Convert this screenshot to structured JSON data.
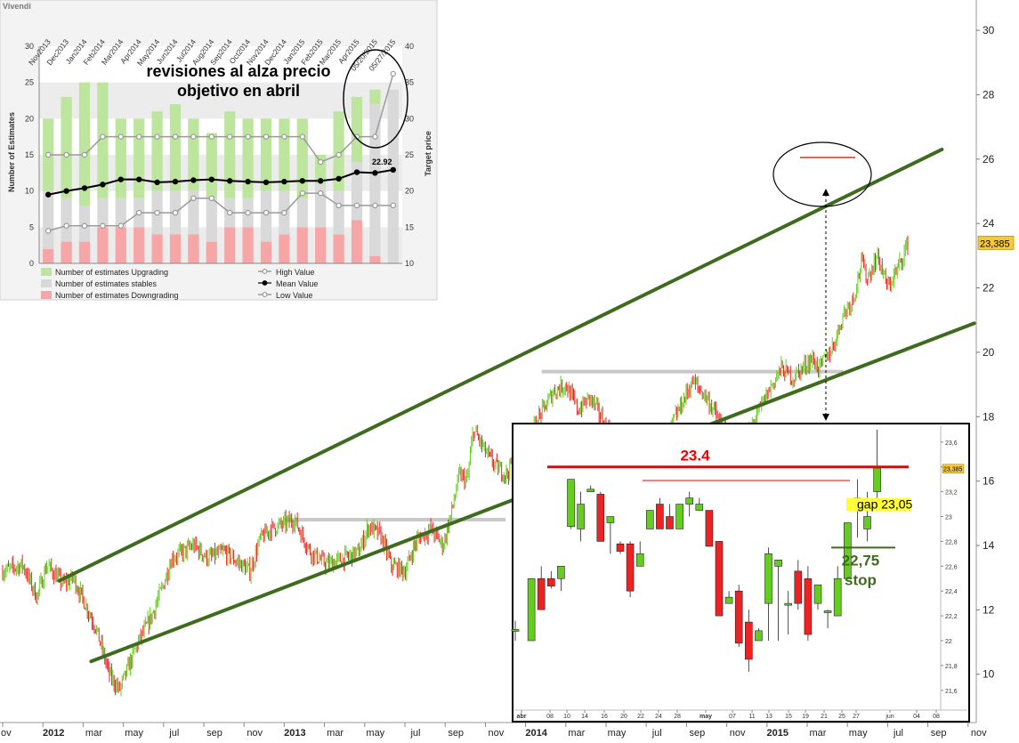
{
  "colors": {
    "up_candle": "#66cc22",
    "down_candle": "#ee2222",
    "channel": "#3e6b1d",
    "resistance": "#c8c8c8",
    "marker_red": "#ee0000",
    "stop_green": "#3e6b1d",
    "upgrading": "#bde59e",
    "stables": "#d9d9d9",
    "downgrading": "#f6a6a6",
    "price_tag": "#f6c93b",
    "gap_highlight": "#ffff33"
  },
  "chart_data": [
    {
      "type": "candlestick",
      "id": "main",
      "y_axis": {
        "position": "right",
        "ticks": [
          10,
          12,
          14,
          16,
          18,
          20,
          22,
          24,
          26,
          28,
          30
        ],
        "range": [
          8.5,
          30.5
        ]
      },
      "x_axis": {
        "labels": [
          {
            "t": "ov",
            "i": 0
          },
          {
            "t": "2012",
            "i": 2
          },
          {
            "t": "mar",
            "i": 4
          },
          {
            "t": "may",
            "i": 6
          },
          {
            "t": "jul",
            "i": 8
          },
          {
            "t": "sep",
            "i": 10
          },
          {
            "t": "nov",
            "i": 12
          },
          {
            "t": "2013",
            "i": 14
          },
          {
            "t": "mar",
            "i": 16
          },
          {
            "t": "may",
            "i": 18
          },
          {
            "t": "jul",
            "i": 20
          },
          {
            "t": "sep",
            "i": 22
          },
          {
            "t": "nov",
            "i": 24
          },
          {
            "t": "2014",
            "i": 26
          },
          {
            "t": "mar",
            "i": 28
          },
          {
            "t": "may",
            "i": 30
          },
          {
            "t": "jul",
            "i": 32
          },
          {
            "t": "sep",
            "i": 34
          },
          {
            "t": "nov",
            "i": 36
          },
          {
            "t": "2015",
            "i": 38
          },
          {
            "t": "mar",
            "i": 40
          },
          {
            "t": "may",
            "i": 42
          },
          {
            "t": "jul",
            "i": 44
          },
          {
            "t": "sep",
            "i": 46
          },
          {
            "t": "nov",
            "i": 48
          }
        ],
        "bold": [
          "2012",
          "2013",
          "2014",
          "2015"
        ]
      },
      "price_path": [
        [
          0,
          13.2
        ],
        [
          1,
          13.4
        ],
        [
          1.7,
          12.4
        ],
        [
          2.2,
          13.4
        ],
        [
          3.0,
          12.8
        ],
        [
          3.5,
          13.0
        ],
        [
          4.6,
          11.5
        ],
        [
          5.3,
          10.0
        ],
        [
          5.8,
          9.5
        ],
        [
          6.6,
          10.8
        ],
        [
          7.4,
          11.8
        ],
        [
          8.0,
          12.8
        ],
        [
          8.4,
          13.6
        ],
        [
          9.5,
          14.0
        ],
        [
          10.2,
          13.6
        ],
        [
          11.0,
          13.8
        ],
        [
          12.3,
          13.2
        ],
        [
          12.8,
          14.2
        ],
        [
          13.3,
          14.5
        ],
        [
          14.5,
          14.8
        ],
        [
          15.3,
          13.8
        ],
        [
          16.1,
          13.4
        ],
        [
          17.0,
          13.6
        ],
        [
          17.7,
          13.8
        ],
        [
          18.2,
          14.6
        ],
        [
          18.8,
          14.3
        ],
        [
          19.3,
          13.4
        ],
        [
          20.0,
          13.2
        ],
        [
          20.6,
          14.2
        ],
        [
          21.3,
          14.5
        ],
        [
          21.9,
          14.0
        ],
        [
          22.3,
          15.0
        ],
        [
          22.7,
          16.2
        ],
        [
          23.1,
          16.0
        ],
        [
          23.4,
          17.6
        ],
        [
          24.1,
          16.8
        ],
        [
          24.6,
          16.4
        ],
        [
          25.1,
          16.2
        ],
        [
          25.5,
          17.0
        ],
        [
          26.2,
          17.2
        ],
        [
          26.5,
          17.8
        ],
        [
          27.4,
          18.8
        ],
        [
          28.0,
          19.0
        ],
        [
          28.6,
          18.2
        ],
        [
          29.2,
          18.6
        ],
        [
          30.1,
          17.6
        ],
        [
          30.7,
          17.2
        ],
        [
          31.4,
          17.4
        ],
        [
          32.2,
          17.2
        ],
        [
          32.7,
          16.6
        ],
        [
          33.3,
          17.8
        ],
        [
          34.3,
          19.1
        ],
        [
          35.0,
          18.6
        ],
        [
          35.6,
          17.9
        ],
        [
          36.2,
          17.2
        ],
        [
          36.6,
          16.8
        ],
        [
          37.3,
          17.8
        ],
        [
          38.0,
          18.7
        ],
        [
          38.7,
          19.5
        ],
        [
          39.3,
          19.2
        ],
        [
          40.2,
          19.8
        ],
        [
          40.6,
          19.5
        ],
        [
          41.3,
          20.2
        ],
        [
          41.8,
          21.2
        ],
        [
          42.3,
          21.7
        ],
        [
          42.7,
          22.8
        ],
        [
          43.0,
          22.3
        ],
        [
          43.5,
          23.0
        ],
        [
          44.0,
          22.0
        ],
        [
          44.5,
          22.6
        ],
        [
          45.0,
          23.39
        ]
      ],
      "channel": [
        {
          "name": "upper",
          "from": [
            2.8,
            12.9
          ],
          "to": [
            46.7,
            26.3
          ]
        },
        {
          "name": "lower",
          "from": [
            4.4,
            10.4
          ],
          "to": [
            48.3,
            20.9
          ]
        }
      ],
      "resistance": [
        {
          "from": [
            14.0,
            14.8
          ],
          "to": [
            25.0,
            14.8
          ]
        },
        {
          "from": [
            26.8,
            19.4
          ],
          "to": [
            41.8,
            19.4
          ]
        }
      ],
      "last_price_label": "23,385",
      "last_price": 23.385
    },
    {
      "type": "bar+line",
      "id": "estimates",
      "title": "Vivendi",
      "ylabel": "Number of Estimates",
      "ylabel_right": "Target price",
      "y_ticks": [
        0,
        5,
        10,
        15,
        20,
        25,
        30
      ],
      "y_ticks_right": [
        10,
        15,
        20,
        25,
        30,
        35,
        40
      ],
      "categories": [
        "Nov2013",
        "Dec2013",
        "Jan2014",
        "Feb2014",
        "Mar2014",
        "Apr2014",
        "May2014",
        "Jun2014",
        "Jul2014",
        "Aug2014",
        "Sep2014",
        "Oct2014",
        "Nov2014",
        "Dec2014",
        "Jan2015",
        "Feb2015",
        "Mar2015",
        "Apr2015",
        "05/20/2015",
        "05/27/2015"
      ],
      "series": [
        {
          "name": "Number of estimates Downgrading",
          "values": [
            2,
            3,
            3,
            5,
            5,
            5,
            4,
            4,
            4,
            3,
            5,
            5,
            3,
            4,
            5,
            5,
            4,
            6,
            1,
            0
          ]
        },
        {
          "name": "Number of estimates stables",
          "values": [
            8,
            6,
            5,
            4,
            4,
            4,
            6,
            6,
            6,
            6,
            4,
            4,
            7,
            6,
            4,
            6,
            6,
            8,
            21,
            24
          ]
        },
        {
          "name": "Number of estimates Upgrading",
          "values": [
            10,
            14,
            17,
            16,
            11,
            11,
            11,
            12,
            10,
            9,
            12,
            11,
            10,
            10,
            11,
            4,
            11,
            9,
            2,
            0
          ]
        }
      ],
      "lines": [
        {
          "name": "High Value",
          "values": [
            25,
            25,
            25,
            27.5,
            27.5,
            27.5,
            27.5,
            27.5,
            27.5,
            27.5,
            27.5,
            27.5,
            27.5,
            27.5,
            27.5,
            24,
            25,
            27.5,
            27.5,
            36.2
          ]
        },
        {
          "name": "Mean Value",
          "values": [
            19.5,
            20,
            20.4,
            20.9,
            21.6,
            21.6,
            21.2,
            21.3,
            21.5,
            21.6,
            21.4,
            21.3,
            21.2,
            21.3,
            21.4,
            21.4,
            21.7,
            22.6,
            22.5,
            22.92
          ]
        },
        {
          "name": "Low Value",
          "values": [
            14.5,
            15.2,
            15.2,
            15.2,
            15.2,
            17,
            17,
            17,
            19,
            19,
            17,
            17,
            17,
            17,
            19.7,
            19.7,
            18,
            18,
            18,
            18
          ]
        }
      ],
      "mean_last_label": "22.92",
      "annotation": "revisiones al alza precio objetivo en abril"
    },
    {
      "type": "candlestick",
      "id": "inset",
      "y_ticks": [
        "23,6",
        "23,4",
        "23,2",
        "23",
        "22,8",
        "22,6",
        "22,4",
        "22,2",
        "22",
        "21,8",
        "21,6"
      ],
      "y_values": [
        23.6,
        23.4,
        23.2,
        23.0,
        22.8,
        22.6,
        22.4,
        22.2,
        22.0,
        21.8,
        21.6
      ],
      "x_labels": [
        "abr",
        "08",
        "10",
        "14",
        "16",
        "20",
        "22",
        "24",
        "28",
        "may",
        "07",
        "11",
        "13",
        "15",
        "19",
        "21",
        "25",
        "27",
        "jun",
        "04",
        "08"
      ],
      "bold_labels": [
        "abr",
        "may"
      ],
      "last_price_label": "23,385",
      "last_price": 23.385,
      "candles": [
        [
          22.08,
          22.16,
          22.0,
          22.09
        ],
        [
          22.0,
          22.5,
          22.0,
          22.5
        ],
        [
          22.5,
          22.6,
          22.25,
          22.25
        ],
        [
          22.5,
          22.56,
          22.42,
          22.44
        ],
        [
          22.5,
          22.6,
          22.4,
          22.6
        ],
        [
          22.92,
          23.3,
          22.9,
          23.3
        ],
        [
          22.9,
          23.2,
          22.8,
          23.1
        ],
        [
          23.2,
          23.25,
          23.2,
          23.22
        ],
        [
          23.18,
          23.2,
          22.8,
          22.8
        ],
        [
          22.95,
          23.0,
          22.7,
          23.0
        ],
        [
          22.78,
          22.8,
          22.7,
          22.72
        ],
        [
          22.78,
          22.8,
          22.35,
          22.4
        ],
        [
          22.6,
          22.8,
          22.6,
          22.7
        ],
        [
          22.9,
          23.05,
          22.9,
          23.05
        ],
        [
          23.1,
          23.15,
          22.9,
          22.9
        ],
        [
          23.0,
          23.1,
          22.9,
          22.9
        ],
        [
          22.9,
          23.1,
          22.9,
          23.1
        ],
        [
          23.1,
          23.2,
          23.0,
          23.15
        ],
        [
          23.05,
          23.15,
          23.05,
          23.1
        ],
        [
          23.05,
          23.05,
          22.76,
          22.76
        ],
        [
          22.8,
          22.8,
          22.2,
          22.2
        ],
        [
          22.3,
          22.4,
          22.3,
          22.35
        ],
        [
          22.4,
          22.45,
          21.95,
          21.98
        ],
        [
          22.15,
          22.25,
          21.75,
          21.85
        ],
        [
          22.0,
          22.1,
          22.0,
          22.08
        ],
        [
          22.3,
          22.75,
          22.0,
          22.7
        ],
        [
          22.6,
          22.65,
          22.0,
          22.65
        ],
        [
          22.3,
          22.4,
          22.05,
          22.3
        ],
        [
          22.56,
          22.65,
          22.25,
          22.3
        ],
        [
          22.5,
          22.6,
          22.0,
          22.05
        ],
        [
          22.3,
          22.45,
          22.25,
          22.45
        ],
        [
          22.23,
          22.25,
          22.1,
          22.24
        ],
        [
          22.2,
          22.6,
          22.2,
          22.5
        ],
        [
          22.5,
          22.95,
          22.5,
          22.95
        ],
        [
          23.12,
          23.3,
          22.83,
          23.15
        ],
        [
          22.9,
          23.2,
          22.8,
          23.0
        ],
        [
          23.2,
          23.7,
          23.1,
          23.39
        ]
      ],
      "resistance_label": "23.4",
      "resistance_value": 23.4,
      "minor_resistance_value": 23.29,
      "gap_label": "gap 23,05",
      "gap_value": 23.05,
      "stop_value_label": "22,75",
      "stop_text": "stop",
      "stop_value": 22.75
    }
  ]
}
